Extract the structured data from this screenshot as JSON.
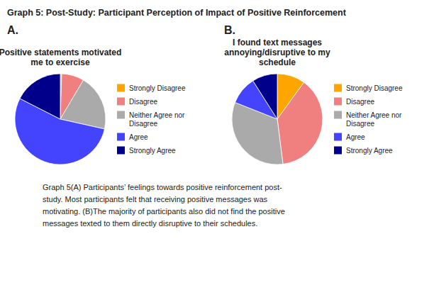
{
  "title": "Graph 5: Post-Study: Participant Perception of Impact of Positive Reinforcement",
  "caption": "Graph 5(A) Participants’ feelings towards positive reinforcement post-\nstudy. Most participants felt that receiving positive messages was\nmotivating. (B)The majority of participants also did not find the positive\nmessages texted to them directly disruptive to their schedules.",
  "chart_data": [
    {
      "type": "pie",
      "title": "Positive statements motivated\nme to exercise",
      "annotations": [
        "A."
      ],
      "categories": [
        "Strongly Disagree",
        "Disagree",
        "Neither Agree nor\nDisagree",
        "Agree",
        "Strongly Agree"
      ],
      "values": [
        0.5,
        8,
        20,
        54,
        17.5
      ],
      "colors": [
        "#FFA500",
        "#F08080",
        "#AAAAAA",
        "#4444FF",
        "#00008B"
      ],
      "legend": "right"
    },
    {
      "type": "pie",
      "title": "I found text messages\nannoying/disruptive to my\nschedule",
      "annotations": [
        "B."
      ],
      "categories": [
        "Strongly Disagree",
        "Disagree",
        "Neither Agree nor\nDisagree",
        "Agree",
        "Strongly Agree"
      ],
      "values": [
        10,
        38,
        33,
        10,
        9
      ],
      "colors": [
        "#FFA500",
        "#F08080",
        "#AAAAAA",
        "#4444FF",
        "#00008B"
      ],
      "legend": "right"
    }
  ]
}
